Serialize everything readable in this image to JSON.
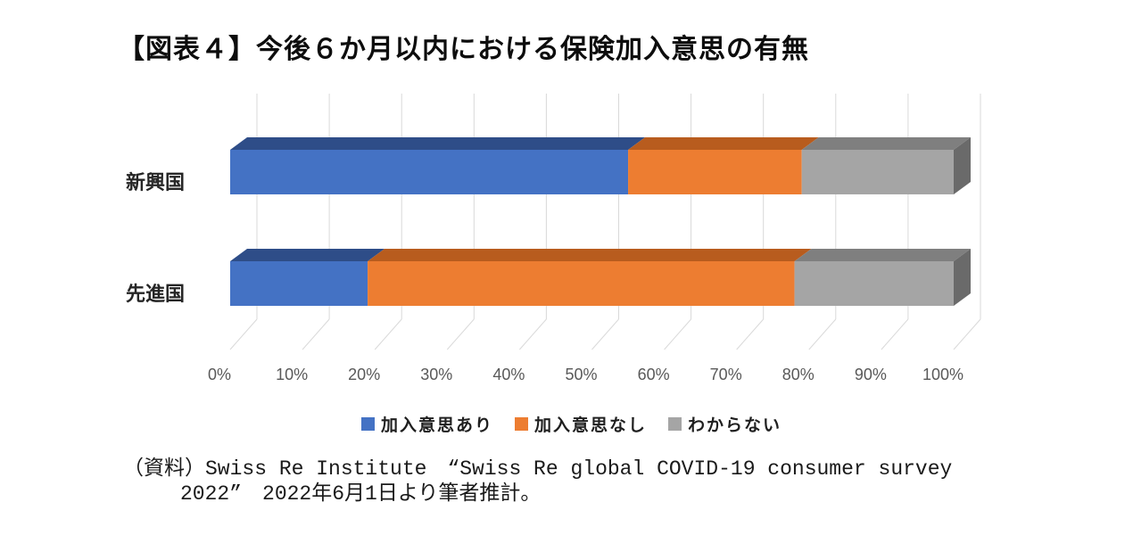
{
  "title": {
    "text": "【図表４】今後６か月以内における保険加入意思の有無"
  },
  "chart_data": {
    "type": "bar",
    "variant": "3d-horizontal-stacked",
    "title": "【図表４】今後６か月以内における保険加入意思の有無",
    "categories": [
      "新興国",
      "先進国"
    ],
    "series": [
      {
        "name": "加入意思あり",
        "values": [
          55,
          19
        ],
        "color": "#4472C4",
        "color_top": "#2e4d88",
        "color_side": "#24406f"
      },
      {
        "name": "加入意思なし",
        "values": [
          24,
          59
        ],
        "color": "#ED7D31",
        "color_top": "#b85c1e",
        "color_side": "#9e4e18"
      },
      {
        "name": "わからない",
        "values": [
          21,
          22
        ],
        "color": "#A5A5A5",
        "color_top": "#7f7f7f",
        "color_side": "#6a6a6a"
      }
    ],
    "xlim": [
      0,
      100
    ],
    "x_ticks": [
      "0%",
      "10%",
      "20%",
      "30%",
      "40%",
      "50%",
      "60%",
      "70%",
      "80%",
      "90%",
      "100%"
    ],
    "unit": "%",
    "grid": true,
    "gridline_color": "#d9d9d9",
    "axis_label_color": "#595959",
    "category_label_color": "#262626",
    "legend_position": "bottom"
  },
  "source": {
    "line1": "（資料）Swiss Re Institute　“Swiss Re global COVID-19 consumer survey",
    "line2": "2022”　2022年6月1日より筆者推計。"
  }
}
